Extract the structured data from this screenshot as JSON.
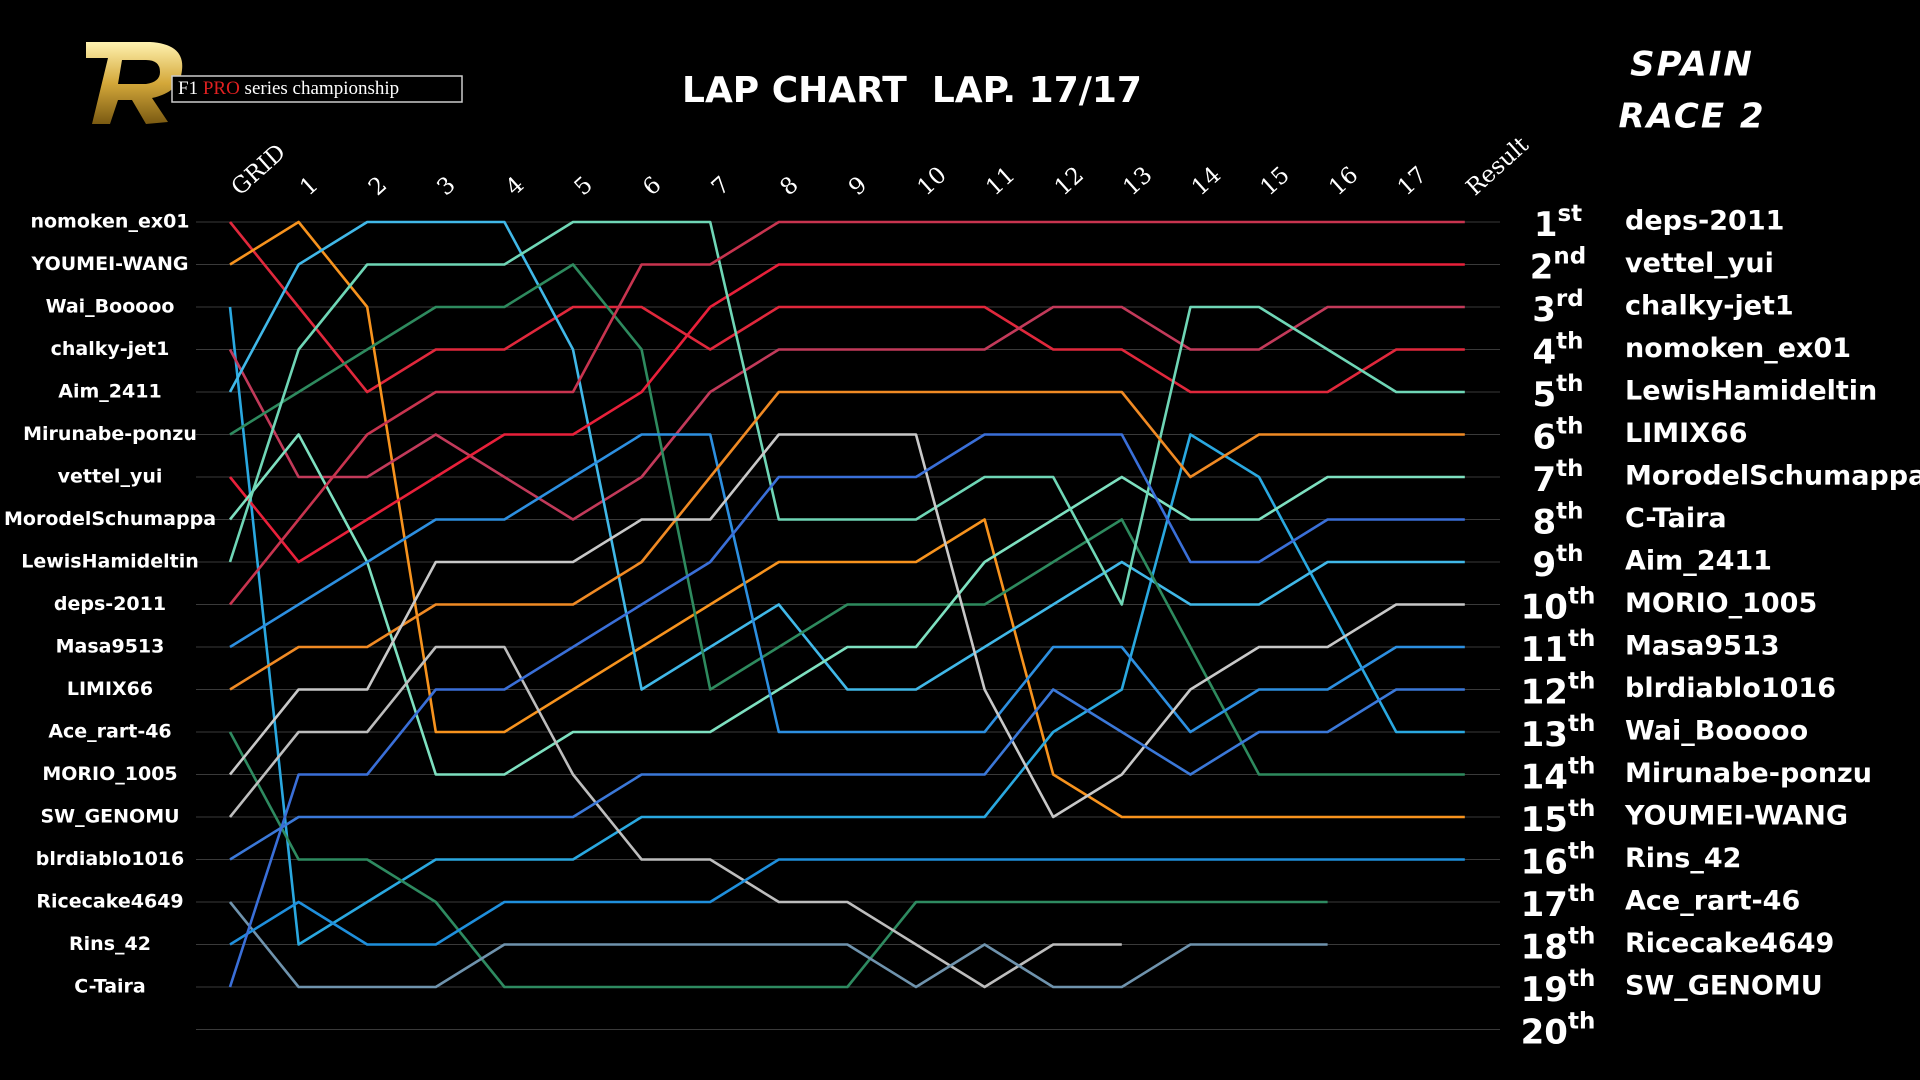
{
  "chart_data": {
    "type": "line",
    "title": "LAP CHART  LAP. 17/17",
    "logo": {
      "parts": [
        "F1",
        "PRO",
        "series championship"
      ]
    },
    "event": [
      "SPAIN",
      "RACE 2"
    ],
    "categories": [
      "GRID",
      "1",
      "2",
      "3",
      "4",
      "5",
      "6",
      "7",
      "8",
      "9",
      "10",
      "11",
      "12",
      "13",
      "14",
      "15",
      "16",
      "17",
      "Result"
    ],
    "ylim": [
      1,
      20
    ],
    "yticks": [
      {
        "value": 1,
        "label": [
          "1",
          "st"
        ]
      },
      {
        "value": 2,
        "label": [
          "2",
          "nd"
        ]
      },
      {
        "value": 3,
        "label": [
          "3",
          "rd"
        ]
      },
      {
        "value": 4,
        "label": [
          "4",
          "th"
        ]
      },
      {
        "value": 5,
        "label": [
          "5",
          "th"
        ]
      },
      {
        "value": 6,
        "label": [
          "6",
          "th"
        ]
      },
      {
        "value": 7,
        "label": [
          "7",
          "th"
        ]
      },
      {
        "value": 8,
        "label": [
          "8",
          "th"
        ]
      },
      {
        "value": 9,
        "label": [
          "9",
          "th"
        ]
      },
      {
        "value": 10,
        "label": [
          "10",
          "th"
        ]
      },
      {
        "value": 11,
        "label": [
          "11",
          "th"
        ]
      },
      {
        "value": 12,
        "label": [
          "12",
          "th"
        ]
      },
      {
        "value": 13,
        "label": [
          "13",
          "th"
        ]
      },
      {
        "value": 14,
        "label": [
          "14",
          "th"
        ]
      },
      {
        "value": 15,
        "label": [
          "15",
          "th"
        ]
      },
      {
        "value": 16,
        "label": [
          "16",
          "th"
        ]
      },
      {
        "value": 17,
        "label": [
          "17",
          "th"
        ]
      },
      {
        "value": 18,
        "label": [
          "18",
          "th"
        ]
      },
      {
        "value": 19,
        "label": [
          "19",
          "th"
        ]
      },
      {
        "value": 20,
        "label": [
          "20",
          "th"
        ]
      }
    ],
    "grid": true,
    "grid_order": [
      "nomoken_ex01",
      "YOUMEI-WANG",
      "Wai_Booooo",
      "chalky-jet1",
      "Aim_2411",
      "Mirunabe-ponzu",
      "vettel_yui",
      "MorodelSchumappa",
      "LewisHamideltin",
      "deps-2011",
      "Masa9513",
      "LIMIX66",
      "Ace_rart-46",
      "MORIO_1005",
      "SW_GENOMU",
      "blrdiablo1016",
      "Ricecake4649",
      "Rins_42",
      "C-Taira"
    ],
    "result_order": [
      "deps-2011",
      "vettel_yui",
      "chalky-jet1",
      "nomoken_ex01",
      "LewisHamideltin",
      "LIMIX66",
      "MorodelSchumappa",
      "C-Taira",
      "Aim_2411",
      "MORIO_1005",
      "Masa9513",
      "blrdiablo1016",
      "Wai_Booooo",
      "Mirunabe-ponzu",
      "YOUMEI-WANG",
      "Rins_42",
      "Ace_rart-46",
      "Ricecake4649",
      "SW_GENOMU"
    ],
    "series": [
      {
        "name": "nomoken_ex01",
        "color": "#e0283c",
        "values": [
          1,
          3,
          5,
          4,
          4,
          3,
          3,
          4,
          3,
          3,
          3,
          3,
          4,
          4,
          5,
          5,
          5,
          4,
          4
        ]
      },
      {
        "name": "YOUMEI-WANG",
        "color": "#f7931e",
        "values": [
          2,
          1,
          3,
          13,
          13,
          12,
          11,
          10,
          9,
          9,
          9,
          8,
          14,
          15,
          15,
          15,
          15,
          15,
          15
        ]
      },
      {
        "name": "Wai_Booooo",
        "color": "#2aa8e0",
        "values": [
          3,
          18,
          17,
          16,
          16,
          16,
          15,
          15,
          15,
          15,
          15,
          15,
          13,
          12,
          6,
          7,
          10,
          13,
          13
        ]
      },
      {
        "name": "chalky-jet1",
        "color": "#c23a5a",
        "values": [
          4,
          7,
          7,
          6,
          7,
          8,
          7,
          5,
          4,
          4,
          4,
          4,
          3,
          3,
          4,
          4,
          3,
          3,
          3
        ]
      },
      {
        "name": "Aim_2411",
        "color": "#41b8e8",
        "values": [
          5,
          2,
          1,
          1,
          1,
          4,
          12,
          11,
          10,
          12,
          12,
          11,
          10,
          9,
          10,
          10,
          9,
          9,
          9
        ]
      },
      {
        "name": "Mirunabe-ponzu",
        "color": "#2e8a5e",
        "values": [
          6,
          5,
          4,
          3,
          3,
          2,
          4,
          12,
          11,
          10,
          10,
          10,
          9,
          8,
          11,
          14,
          14,
          14,
          14
        ]
      },
      {
        "name": "vettel_yui",
        "color": "#e8203a",
        "values": [
          7,
          9,
          8,
          7,
          6,
          6,
          5,
          3,
          2,
          2,
          2,
          2,
          2,
          2,
          2,
          2,
          2,
          2,
          2
        ]
      },
      {
        "name": "MorodelSchumappa",
        "color": "#7ee0c0",
        "values": [
          8,
          6,
          9,
          14,
          14,
          13,
          13,
          13,
          12,
          11,
          11,
          9,
          8,
          7,
          8,
          8,
          7,
          7,
          7
        ]
      },
      {
        "name": "LewisHamideltin",
        "color": "#6fd6b6",
        "values": [
          9,
          4,
          2,
          2,
          2,
          1,
          1,
          1,
          8,
          8,
          8,
          7,
          7,
          10,
          3,
          3,
          4,
          5,
          5
        ]
      },
      {
        "name": "deps-2011",
        "color": "#c8344f",
        "values": [
          10,
          8,
          6,
          5,
          5,
          5,
          2,
          2,
          1,
          1,
          1,
          1,
          1,
          1,
          1,
          1,
          1,
          1,
          1
        ]
      },
      {
        "name": "Masa9513",
        "color": "#2d8fe0",
        "values": [
          11,
          10,
          9,
          8,
          8,
          7,
          6,
          6,
          13,
          13,
          13,
          13,
          11,
          11,
          13,
          12,
          12,
          11,
          11
        ]
      },
      {
        "name": "LIMIX66",
        "color": "#f08a24",
        "values": [
          12,
          11,
          11,
          10,
          10,
          10,
          9,
          7,
          5,
          5,
          5,
          5,
          5,
          5,
          7,
          6,
          6,
          6,
          6
        ]
      },
      {
        "name": "Ace_rart-46",
        "color": "#2e8a60",
        "values": [
          13,
          16,
          16,
          17,
          19,
          19,
          19,
          19,
          19,
          19,
          17,
          17,
          17,
          17,
          17,
          17,
          17,
          null,
          null
        ]
      },
      {
        "name": "MORIO_1005",
        "color": "#c8c8c8",
        "values": [
          14,
          12,
          12,
          9,
          9,
          9,
          8,
          8,
          6,
          6,
          6,
          12,
          15,
          14,
          12,
          11,
          11,
          10,
          10
        ]
      },
      {
        "name": "SW_GENOMU",
        "color": "#bdbdbd",
        "values": [
          15,
          13,
          13,
          11,
          11,
          14,
          16,
          16,
          17,
          17,
          18,
          19,
          18,
          18,
          null,
          null,
          null,
          null,
          null
        ]
      },
      {
        "name": "blrdiablo1016",
        "color": "#3b78d8",
        "values": [
          16,
          15,
          15,
          15,
          15,
          15,
          14,
          14,
          14,
          14,
          14,
          14,
          12,
          13,
          14,
          13,
          13,
          12,
          12
        ]
      },
      {
        "name": "Ricecake4649",
        "color": "#6f93ad",
        "values": [
          17,
          19,
          19,
          19,
          18,
          18,
          18,
          18,
          18,
          18,
          19,
          18,
          19,
          19,
          18,
          18,
          18,
          null,
          null
        ]
      },
      {
        "name": "Rins_42",
        "color": "#1f8fdc",
        "values": [
          18,
          17,
          18,
          18,
          17,
          17,
          17,
          17,
          16,
          16,
          16,
          16,
          16,
          16,
          16,
          16,
          16,
          16,
          16
        ]
      },
      {
        "name": "C-Taira",
        "color": "#3a6fd8",
        "values": [
          19,
          14,
          14,
          12,
          12,
          11,
          10,
          9,
          7,
          7,
          7,
          6,
          6,
          6,
          9,
          9,
          8,
          8,
          8
        ]
      }
    ]
  }
}
